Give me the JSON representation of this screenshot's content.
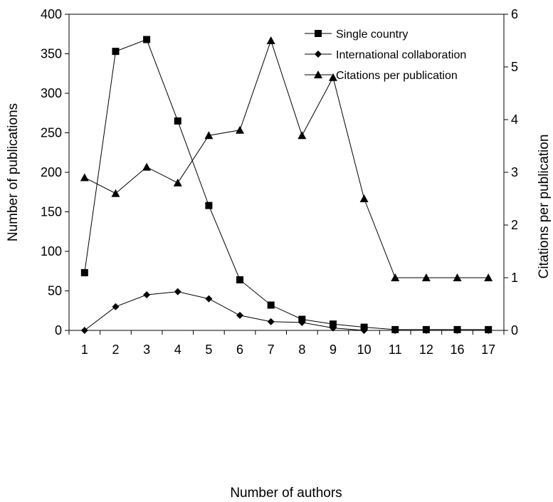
{
  "chart_data": {
    "type": "line",
    "title": "",
    "xlabel": "Number of authors",
    "ylabel": "Number of publications",
    "y2label": "Citations per publication",
    "categories": [
      "1",
      "2",
      "3",
      "4",
      "5",
      "6",
      "7",
      "8",
      "9",
      "10",
      "11",
      "12",
      "16",
      "17"
    ],
    "ylim": [
      0,
      400
    ],
    "y2lim": [
      0,
      6
    ],
    "yticks": [
      0,
      50,
      100,
      150,
      200,
      250,
      300,
      350,
      400
    ],
    "y2ticks": [
      0,
      1,
      2,
      3,
      4,
      5,
      6
    ],
    "grid": false,
    "legend": "top-right",
    "series": [
      {
        "name": "Single country",
        "axis": "left",
        "marker": "square",
        "values": [
          73,
          353,
          368,
          265,
          158,
          64,
          32,
          14,
          8,
          4,
          1,
          1,
          1,
          1
        ]
      },
      {
        "name": "International collaboration",
        "axis": "left",
        "marker": "diamond",
        "values": [
          0,
          30,
          45,
          49,
          40,
          19,
          11,
          10,
          3,
          0,
          0,
          0,
          0,
          0
        ]
      },
      {
        "name": "Citations per publication",
        "axis": "right",
        "marker": "triangle",
        "values": [
          2.9,
          2.6,
          3.1,
          2.8,
          3.7,
          3.8,
          5.5,
          3.7,
          4.8,
          2.5,
          1.0,
          1.0,
          1.0,
          1.0
        ]
      }
    ]
  }
}
